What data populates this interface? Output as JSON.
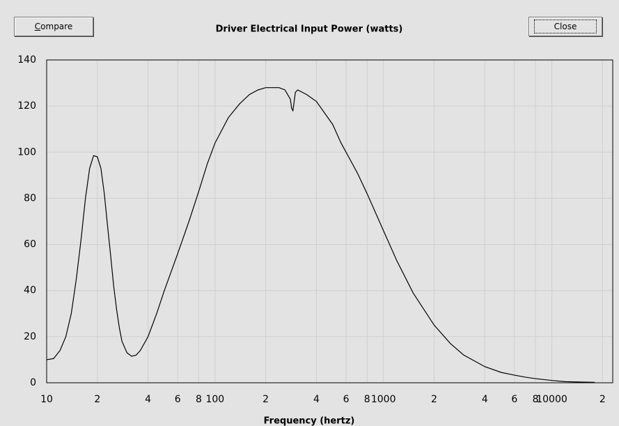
{
  "buttons": {
    "compare": "Compare",
    "close": "Close"
  },
  "chart_data": {
    "type": "line",
    "title": "Driver Electrical Input Power (watts)",
    "x_label": "Frequency (hertz)",
    "log_x": true,
    "grid": true,
    "color": "#000000",
    "x": [
      10,
      11,
      12,
      13,
      14,
      15,
      16,
      17,
      18,
      19,
      20,
      21,
      22,
      23,
      24,
      25,
      26,
      27,
      28,
      30,
      32,
      34,
      36,
      40,
      45,
      50,
      60,
      70,
      80,
      90,
      100,
      120,
      140,
      160,
      180,
      200,
      240,
      260,
      280,
      285,
      290,
      295,
      300,
      310,
      350,
      400,
      500,
      560,
      600,
      700,
      800,
      1000,
      1200,
      1500,
      2000,
      2500,
      3000,
      4000,
      5000,
      6000,
      7000,
      8000,
      10000,
      12000,
      15000,
      18000
    ],
    "values": [
      10,
      10.5,
      14,
      20,
      30,
      45,
      62,
      80,
      93,
      98.5,
      98,
      93,
      82,
      68,
      55,
      42,
      32,
      24,
      18,
      13,
      11.5,
      12,
      14,
      20,
      30,
      40,
      56,
      70,
      83,
      95,
      104,
      115,
      121,
      125,
      127,
      128,
      128,
      127,
      123,
      119,
      118,
      122,
      126,
      127,
      125,
      122,
      112,
      104,
      100,
      91,
      82,
      66,
      53,
      39,
      25,
      17,
      12,
      7,
      4.5,
      3.3,
      2.4,
      1.8,
      1,
      0.5,
      0.3,
      0.2
    ],
    "xlim": [
      10,
      23000
    ],
    "ylim": [
      0,
      140
    ],
    "xticks": [
      10,
      {
        "value": 20,
        "label": "2"
      },
      {
        "value": 40,
        "label": "4"
      },
      {
        "value": 60,
        "label": "6"
      },
      {
        "value": 80,
        "label": "8"
      },
      100,
      {
        "value": 200,
        "label": "2"
      },
      {
        "value": 400,
        "label": "4"
      },
      {
        "value": 600,
        "label": "6"
      },
      {
        "value": 800,
        "label": "8"
      },
      1000,
      {
        "value": 2000,
        "label": "2"
      },
      {
        "value": 4000,
        "label": "4"
      },
      {
        "value": 6000,
        "label": "6"
      },
      {
        "value": 8000,
        "label": "8"
      },
      10000,
      {
        "value": 20000,
        "label": "2"
      }
    ],
    "yticks": [
      0,
      20,
      40,
      60,
      80,
      100,
      120,
      140
    ]
  }
}
